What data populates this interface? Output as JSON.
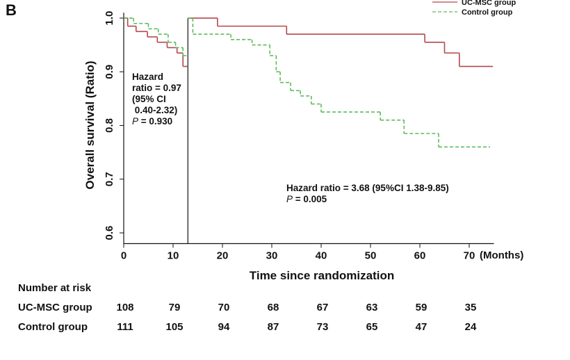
{
  "chart_data": {
    "type": "step",
    "panel": "B",
    "ylabel": "Overall survival (Ratio)",
    "xlabel": "Time since randomization",
    "xunit": "(Months)",
    "xlim": [
      0,
      75
    ],
    "ylim": [
      0.58,
      1.01
    ],
    "xticks": [
      0,
      10,
      20,
      30,
      40,
      50,
      60,
      70
    ],
    "yticks": [
      {
        "value": 0.6,
        "label": "0.6"
      },
      {
        "value": 0.7,
        "label": "0.7"
      },
      {
        "value": 0.8,
        "label": "0.8"
      },
      {
        "value": 0.9,
        "label": "0.9"
      },
      {
        "value": 1.0,
        "label": "1.0"
      }
    ],
    "vline_x": 13,
    "series": [
      {
        "name": "UC-MSC group",
        "color": "#b4474c",
        "dash": false,
        "x": [
          0,
          0.8,
          2.5,
          4.8,
          6.8,
          8.8,
          10.8,
          12,
          13,
          null,
          13,
          19,
          33,
          61,
          65,
          68,
          74.8
        ],
        "values": [
          1.0,
          0.985,
          0.975,
          0.965,
          0.955,
          0.945,
          0.935,
          0.91,
          0.91,
          null,
          1.0,
          0.985,
          0.97,
          0.955,
          0.935,
          0.91,
          0.91
        ]
      },
      {
        "name": "Control group",
        "color": "#5dbb5d",
        "dash": true,
        "x": [
          0,
          2,
          5,
          7,
          9,
          10.5,
          12,
          13,
          null,
          13,
          14,
          21.7,
          26,
          29.6,
          30.9,
          31.7,
          33.8,
          35.8,
          38,
          40,
          52,
          56.8,
          63.8,
          74.2
        ],
        "values": [
          1.0,
          0.99,
          0.98,
          0.97,
          0.955,
          0.945,
          0.93,
          0.93,
          null,
          1.0,
          0.97,
          0.96,
          0.95,
          0.93,
          0.9,
          0.88,
          0.865,
          0.855,
          0.84,
          0.825,
          0.81,
          0.785,
          0.76,
          0.76
        ]
      }
    ],
    "annotations": [
      {
        "lines": [
          "Hazard",
          "ratio = 0.97",
          "(95% CI",
          " 0.40-2.32)"
        ],
        "p": "P",
        "p_text": " = 0.930"
      },
      {
        "lines": [
          "Hazard ratio = 3.68 (95%CI 1.38-9.85)"
        ],
        "p": "P",
        "p_text": " = 0.005"
      }
    ],
    "risk_table": {
      "title": "Number at risk",
      "rows": [
        {
          "name": "UC-MSC group",
          "values": [
            108,
            79,
            70,
            68,
            67,
            63,
            59,
            35
          ]
        },
        {
          "name": "Control group",
          "values": [
            111,
            105,
            94,
            87,
            73,
            65,
            47,
            24
          ]
        }
      ]
    }
  }
}
